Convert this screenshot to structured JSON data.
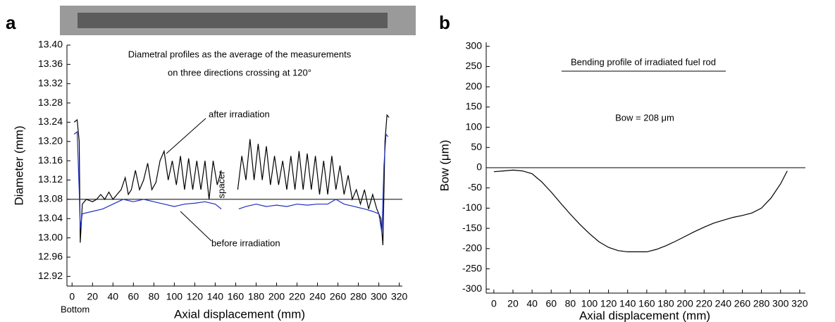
{
  "chart_data": [
    {
      "type": "line",
      "panel": "a",
      "title": "Diametral profiles as the average of the measurements",
      "subtitle": "on three directions crossing at 120°",
      "xlabel": "Axial displacement  (mm)",
      "ylabel": "Diameter  (mm)",
      "annotations": [
        "spacer",
        "Bottom"
      ],
      "xlim": [
        -5,
        323
      ],
      "ylim": [
        12.9,
        13.4
      ],
      "xticks": [
        0,
        20,
        40,
        60,
        80,
        100,
        120,
        140,
        160,
        180,
        200,
        220,
        240,
        260,
        280,
        300,
        320
      ],
      "yticks": [
        {
          "value": 13.4,
          "label": "13.40"
        },
        13.36,
        13.32,
        13.28,
        13.24,
        {
          "value": 13.2,
          "label": "13.20"
        },
        13.16,
        13.12,
        13.08,
        13.04,
        {
          "value": 13.0,
          "label": "13.00"
        },
        12.96,
        12.92
      ],
      "reference_line": 13.08,
      "series": [
        {
          "name": "after irradiation",
          "color": "#000000",
          "x": [
            2,
            5,
            7,
            8,
            10,
            14,
            20,
            24,
            28,
            32,
            36,
            40,
            44,
            48,
            52,
            55,
            58,
            62,
            66,
            70,
            74,
            78,
            82,
            86,
            90,
            94,
            98,
            102,
            106,
            110,
            114,
            118,
            122,
            126,
            130,
            134,
            138,
            142,
            146,
            154,
            162,
            166,
            170,
            174,
            178,
            182,
            186,
            190,
            194,
            198,
            202,
            206,
            210,
            214,
            218,
            222,
            226,
            230,
            234,
            238,
            242,
            246,
            250,
            254,
            258,
            262,
            266,
            270,
            274,
            278,
            282,
            286,
            290,
            294,
            298,
            302,
            304,
            306,
            308,
            310
          ],
          "values": [
            13.24,
            13.245,
            13.2,
            12.99,
            13.07,
            13.08,
            13.075,
            13.08,
            13.09,
            13.08,
            13.095,
            13.08,
            13.09,
            13.1,
            13.125,
            13.09,
            13.1,
            13.14,
            13.1,
            13.12,
            13.155,
            13.1,
            13.115,
            13.16,
            13.18,
            13.12,
            13.16,
            13.11,
            13.17,
            13.1,
            13.165,
            13.1,
            13.16,
            13.1,
            13.16,
            13.08,
            13.16,
            13.11,
            13.14,
            null,
            13.1,
            13.17,
            13.12,
            13.205,
            13.12,
            13.195,
            13.12,
            13.19,
            13.11,
            13.17,
            13.11,
            13.16,
            13.1,
            13.17,
            13.1,
            13.18,
            13.1,
            13.175,
            13.1,
            13.17,
            13.09,
            13.16,
            13.09,
            13.17,
            13.1,
            13.15,
            13.09,
            13.13,
            13.08,
            13.1,
            13.07,
            13.1,
            13.06,
            13.09,
            13.06,
            13.04,
            12.985,
            13.2,
            13.255,
            13.25
          ]
        },
        {
          "name": "before irradiation",
          "color": "#1f2fbf",
          "x": [
            2,
            5,
            7,
            8,
            10,
            20,
            30,
            40,
            50,
            60,
            70,
            80,
            90,
            100,
            110,
            120,
            130,
            140,
            146,
            154,
            163,
            170,
            180,
            190,
            200,
            210,
            220,
            230,
            240,
            250,
            258,
            266,
            276,
            286,
            294,
            300,
            303,
            305,
            307,
            309
          ],
          "values": [
            13.215,
            13.22,
            13.1,
            13.02,
            13.05,
            13.055,
            13.06,
            13.07,
            13.08,
            13.075,
            13.08,
            13.075,
            13.07,
            13.065,
            13.07,
            13.072,
            13.075,
            13.07,
            13.06,
            null,
            13.06,
            13.065,
            13.07,
            13.065,
            13.068,
            13.065,
            13.07,
            13.068,
            13.07,
            13.07,
            13.08,
            13.07,
            13.065,
            13.06,
            13.055,
            13.05,
            13.01,
            13.15,
            13.215,
            13.21
          ]
        }
      ]
    },
    {
      "type": "line",
      "panel": "b",
      "title": "Bending profile of irradiated fuel rod",
      "xlabel": "Axial displacement  (mm)",
      "ylabel": "Bow  (μm)",
      "annotations": [
        "Bow = 208 μm"
      ],
      "xlim": [
        -8,
        326
      ],
      "ylim": [
        -310,
        310
      ],
      "xticks": [
        0,
        20,
        40,
        60,
        80,
        100,
        120,
        140,
        160,
        180,
        200,
        220,
        240,
        260,
        280,
        300,
        320
      ],
      "yticks": [
        300,
        250,
        200,
        150,
        100,
        50,
        0,
        -50,
        -100,
        -150,
        -200,
        -250,
        -300
      ],
      "reference_line": 0,
      "series": [
        {
          "color": "#000000",
          "x": [
            0,
            10,
            20,
            30,
            40,
            50,
            60,
            70,
            80,
            90,
            100,
            110,
            120,
            130,
            140,
            150,
            160,
            170,
            180,
            190,
            200,
            210,
            220,
            230,
            240,
            250,
            260,
            270,
            280,
            290,
            300,
            307
          ],
          "values": [
            -10,
            -8,
            -6,
            -8,
            -15,
            -35,
            -60,
            -88,
            -115,
            -140,
            -163,
            -183,
            -197,
            -205,
            -208,
            -208,
            -208,
            -202,
            -193,
            -182,
            -170,
            -158,
            -147,
            -137,
            -130,
            -123,
            -118,
            -112,
            -100,
            -75,
            -40,
            -8
          ]
        }
      ]
    }
  ]
}
